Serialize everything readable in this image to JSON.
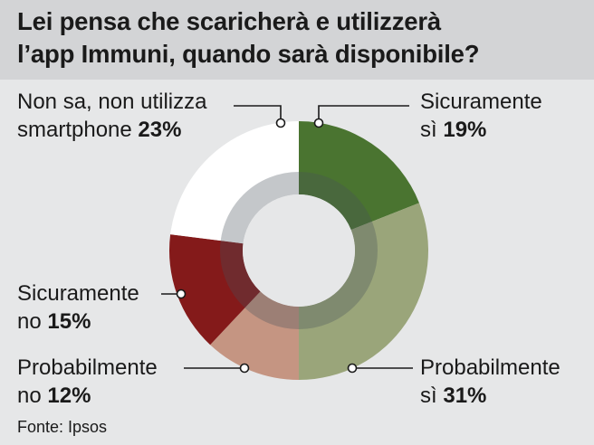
{
  "title_lines": [
    "Lei pensa che scaricherà e utilizzerà",
    "l’app Immuni, quando sarà disponibile?"
  ],
  "source": "Fonte: Ipsos",
  "chart_data": {
    "type": "pie",
    "title": "Lei pensa che scaricherà e utilizzerà l’app Immuni, quando sarà disponibile?",
    "slices": [
      {
        "label": "Sicuramente sì",
        "value": 19,
        "color": "#4a7430"
      },
      {
        "label": "Probabilmente sì",
        "value": 31,
        "color": "#9aa57a"
      },
      {
        "label": "Probabilmente no",
        "value": 12,
        "color": "#c59582"
      },
      {
        "label": "Sicuramente no",
        "value": 15,
        "color": "#841a1a"
      },
      {
        "label": "Non sa, non utilizza smartphone",
        "value": 23,
        "color": "#ffffff"
      }
    ]
  },
  "labels": {
    "sicuramente_si": {
      "line1": "Sicuramente",
      "line2": "sì",
      "pct": "19%"
    },
    "probabilmente_si": {
      "line1": "Probabilmente",
      "line2": "sì",
      "pct": "31%"
    },
    "probabilmente_no": {
      "line1": "Probabilmente",
      "line2": "no",
      "pct": "12%"
    },
    "sicuramente_no": {
      "line1": "Sicuramente",
      "line2": "no",
      "pct": "15%"
    },
    "non_sa": {
      "line1": "Non sa, non utilizza",
      "line2": "smartphone",
      "pct": "23%"
    }
  }
}
